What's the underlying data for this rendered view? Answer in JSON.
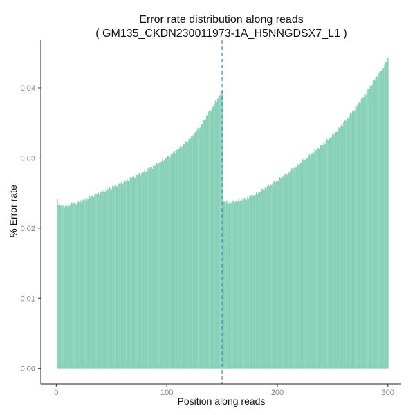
{
  "chart_data": {
    "type": "bar",
    "title": "Error rate distribution along reads",
    "subtitle": "( GM135_CKDN230011973-1A_H5NNGDSX7_L1 )",
    "xlabel": "Position along reads",
    "ylabel": "% Error rate",
    "xlim": [
      -14,
      312
    ],
    "ylim": [
      -0.0022,
      0.0468
    ],
    "xticks": [
      0,
      100,
      200,
      300
    ],
    "yticks": [
      0.0,
      0.01,
      0.02,
      0.03,
      0.04
    ],
    "ytick_labels": [
      "0.00",
      "0.01",
      "0.02",
      "0.03",
      "0.04"
    ],
    "grid": false,
    "bar_color": "#88d1b8",
    "vline": {
      "x": 150,
      "color": "#3a86c8",
      "style": "dashed"
    },
    "read1_anchors": [
      [
        1,
        0.0241
      ],
      [
        2,
        0.0235
      ],
      [
        3,
        0.0232
      ],
      [
        5,
        0.0231
      ],
      [
        10,
        0.0232
      ],
      [
        20,
        0.0237
      ],
      [
        30,
        0.0244
      ],
      [
        40,
        0.0251
      ],
      [
        50,
        0.0258
      ],
      [
        60,
        0.0265
      ],
      [
        70,
        0.0273
      ],
      [
        80,
        0.0281
      ],
      [
        90,
        0.029
      ],
      [
        100,
        0.03
      ],
      [
        110,
        0.0312
      ],
      [
        120,
        0.0326
      ],
      [
        130,
        0.0344
      ],
      [
        140,
        0.037
      ],
      [
        145,
        0.0382
      ],
      [
        150,
        0.0395
      ]
    ],
    "read2_anchors": [
      [
        151,
        0.024
      ],
      [
        152,
        0.0238
      ],
      [
        155,
        0.0237
      ],
      [
        160,
        0.0237
      ],
      [
        170,
        0.0241
      ],
      [
        180,
        0.0248
      ],
      [
        190,
        0.0258
      ],
      [
        200,
        0.0268
      ],
      [
        210,
        0.0279
      ],
      [
        220,
        0.0292
      ],
      [
        230,
        0.0305
      ],
      [
        240,
        0.0318
      ],
      [
        250,
        0.0332
      ],
      [
        260,
        0.035
      ],
      [
        270,
        0.037
      ],
      [
        280,
        0.0392
      ],
      [
        290,
        0.0416
      ],
      [
        295,
        0.0427
      ],
      [
        300,
        0.0441
      ]
    ],
    "x_range": [
      1,
      300
    ]
  }
}
